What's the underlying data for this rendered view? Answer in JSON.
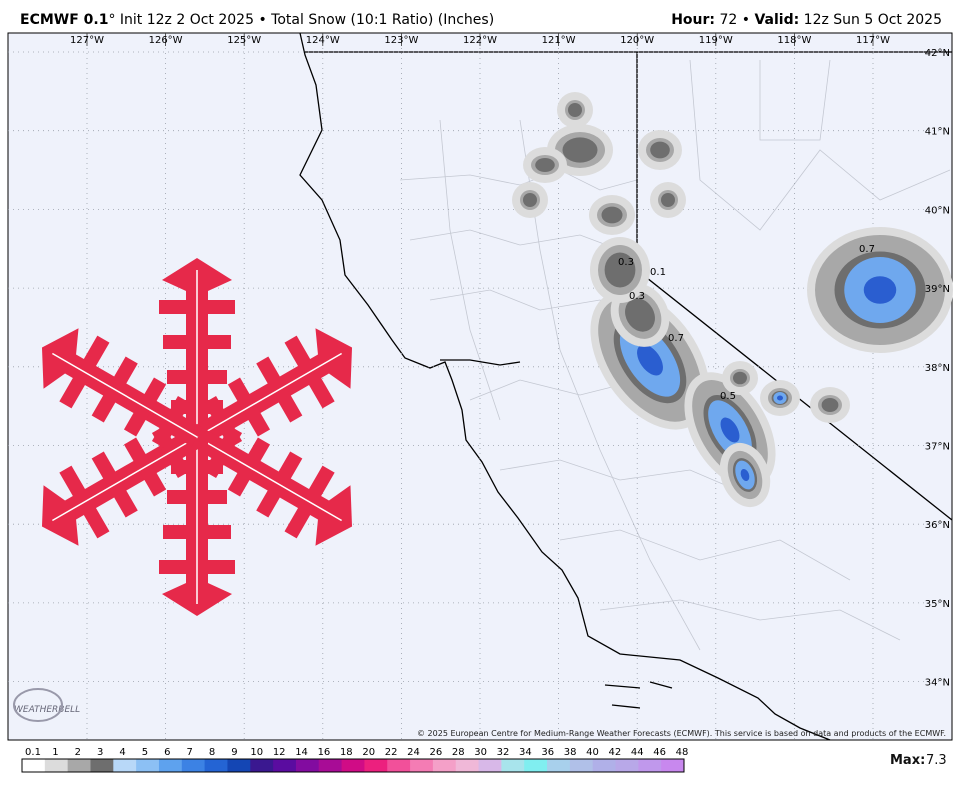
{
  "header": {
    "model": "ECMWF 0.1",
    "degree": "°",
    "init": "Init 12z 2 Oct 2025",
    "sep": "•",
    "product": "Total Snow (10:1 Ratio) (Inches)",
    "hour_label": "Hour:",
    "hour": "72",
    "sep2": "•",
    "valid_label": "Valid:",
    "valid": "12z Sun 5 Oct 2025"
  },
  "map": {
    "longitudes": [
      "127°W",
      "126°W",
      "125°W",
      "124°W",
      "123°W",
      "122°W",
      "121°W",
      "120°W",
      "119°W",
      "118°W",
      "117°W"
    ],
    "latitudes": [
      "42°N",
      "41°N",
      "40°N",
      "39°N",
      "38°N",
      "37°N",
      "36°N",
      "35°N",
      "34°N"
    ],
    "contour_labels": [
      "0.3",
      "0.1",
      "0.3",
      "0.7",
      "0.5",
      "0.7"
    ],
    "copyright": "© 2025 European Centre for Medium-Range Weather Forecasts (ECMWF). This service is based on data and products of the ECMWF.",
    "logo": "WEATHERBELL"
  },
  "legend": {
    "labels": [
      "0.1",
      "1",
      "2",
      "3",
      "4",
      "5",
      "6",
      "7",
      "8",
      "9",
      "10",
      "12",
      "14",
      "16",
      "18",
      "20",
      "22",
      "24",
      "26",
      "28",
      "30",
      "32",
      "34",
      "36",
      "38",
      "40",
      "42",
      "44",
      "46",
      "48"
    ],
    "colors": [
      "#ffffff",
      "#dcdcdc",
      "#a8a8a8",
      "#6e6e6e",
      "#b8d8f8",
      "#8cc0f4",
      "#5ea2ee",
      "#3c82e4",
      "#2464d4",
      "#1446b4",
      "#3a1890",
      "#5a0ca0",
      "#820ca0",
      "#a80c96",
      "#d00c86",
      "#ec207e",
      "#f2509a",
      "#f47cb4",
      "#f4a0c8",
      "#f0b8d8",
      "#d8b8e8",
      "#a8e4ec",
      "#80eef0",
      "#a8d0ec",
      "#b0c0e8",
      "#b0b0e8",
      "#b8a8e8",
      "#c098ec",
      "#c888ee"
    ]
  },
  "max": {
    "label": "Max:",
    "value": "7.3"
  }
}
